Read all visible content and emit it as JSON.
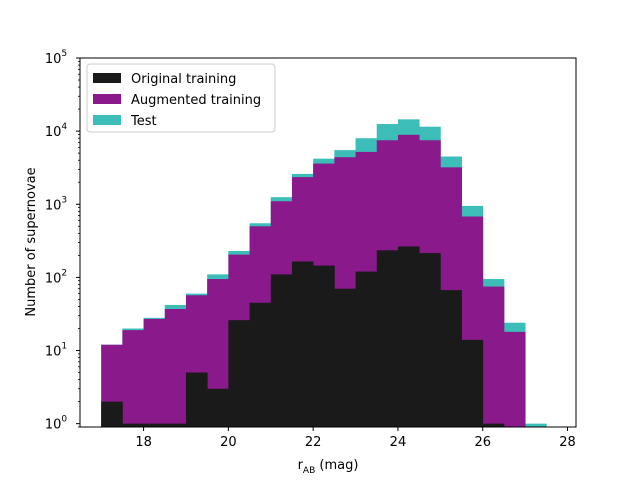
{
  "chart_data": {
    "type": "bar",
    "xlabel_main": "r",
    "xlabel_sub": "AB",
    "xlabel_unit": " (mag)",
    "ylabel": "Number of supernovae",
    "yscale": "log",
    "xlim": [
      16.5,
      28.2
    ],
    "ylim": [
      0.9,
      100000
    ],
    "x_ticks": [
      18,
      20,
      22,
      24,
      26,
      28
    ],
    "y_tick_exponents": [
      0,
      1,
      2,
      3,
      4,
      5
    ],
    "legend_position": "upper-left",
    "grid": false,
    "bin_edges": [
      17.0,
      17.5,
      18.0,
      18.5,
      19.0,
      19.5,
      20.0,
      20.5,
      21.0,
      21.5,
      22.0,
      22.5,
      23.0,
      23.5,
      24.0,
      24.5,
      25.0,
      25.5,
      26.0,
      26.5,
      27.0,
      27.5
    ],
    "series": [
      {
        "name": "Test",
        "color": "#3dbdb8",
        "values": [
          12,
          20,
          28,
          42,
          60,
          110,
          230,
          550,
          1250,
          2600,
          4200,
          5500,
          8000,
          12500,
          14500,
          11500,
          4500,
          950,
          95,
          24,
          1
        ]
      },
      {
        "name": "Augmented training",
        "color": "#8a1a8c",
        "values": [
          12,
          19,
          27,
          37,
          57,
          95,
          205,
          500,
          1100,
          2350,
          3600,
          4400,
          5200,
          7500,
          8900,
          7500,
          3200,
          680,
          75,
          18,
          0
        ]
      },
      {
        "name": "Original training",
        "color": "#1a1a1a",
        "values": [
          2,
          1,
          1,
          1,
          5,
          3,
          26,
          45,
          110,
          165,
          145,
          70,
          120,
          235,
          265,
          215,
          67,
          14,
          1,
          0,
          0
        ]
      }
    ]
  }
}
